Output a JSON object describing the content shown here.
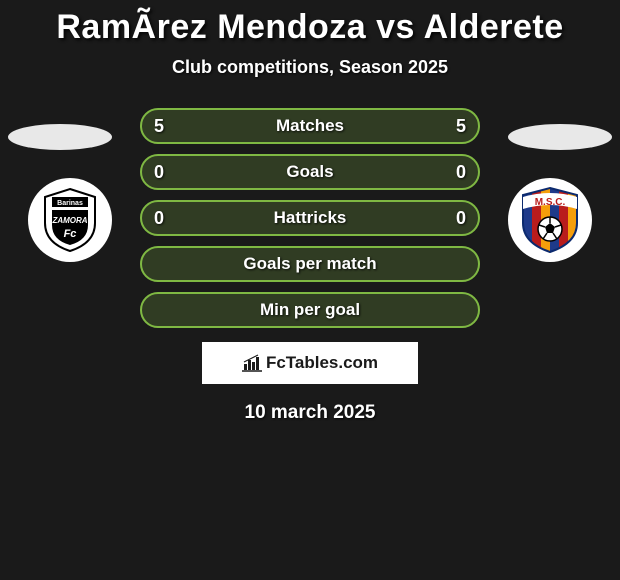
{
  "title": "RamÃ­rez Mendoza vs Alderete",
  "subtitle": "Club competitions, Season 2025",
  "date": "10 march 2025",
  "credit": {
    "label": "FcTables.com",
    "icon": "bar-chart-icon"
  },
  "colors": {
    "background": "#1a1a1a",
    "text": "#ffffff",
    "pill_border": "#7fb843",
    "pill_fill": "rgba(127,184,67,0.22)",
    "oval": "#e8e8e8",
    "badge_bg": "#ffffff"
  },
  "rows": [
    {
      "left": "5",
      "label": "Matches",
      "right": "5",
      "has_values": true
    },
    {
      "left": "0",
      "label": "Goals",
      "right": "0",
      "has_values": true
    },
    {
      "left": "0",
      "label": "Hattricks",
      "right": "0",
      "has_values": true
    },
    {
      "left": "",
      "label": "Goals per match",
      "right": "",
      "has_values": false
    },
    {
      "left": "",
      "label": "Min per goal",
      "right": "",
      "has_values": false
    }
  ],
  "club_left": {
    "name": "Zamora FC Barinas",
    "shield_bg": "#ffffff",
    "shield_fg": "#000000"
  },
  "club_right": {
    "name": "M.S.C.",
    "stripes": [
      "#1e3a8a",
      "#b91c1c",
      "#f59e0b"
    ],
    "banner_bg": "#ffffff",
    "banner_text_color": "#b91c1c",
    "ball_color": "#000000"
  }
}
